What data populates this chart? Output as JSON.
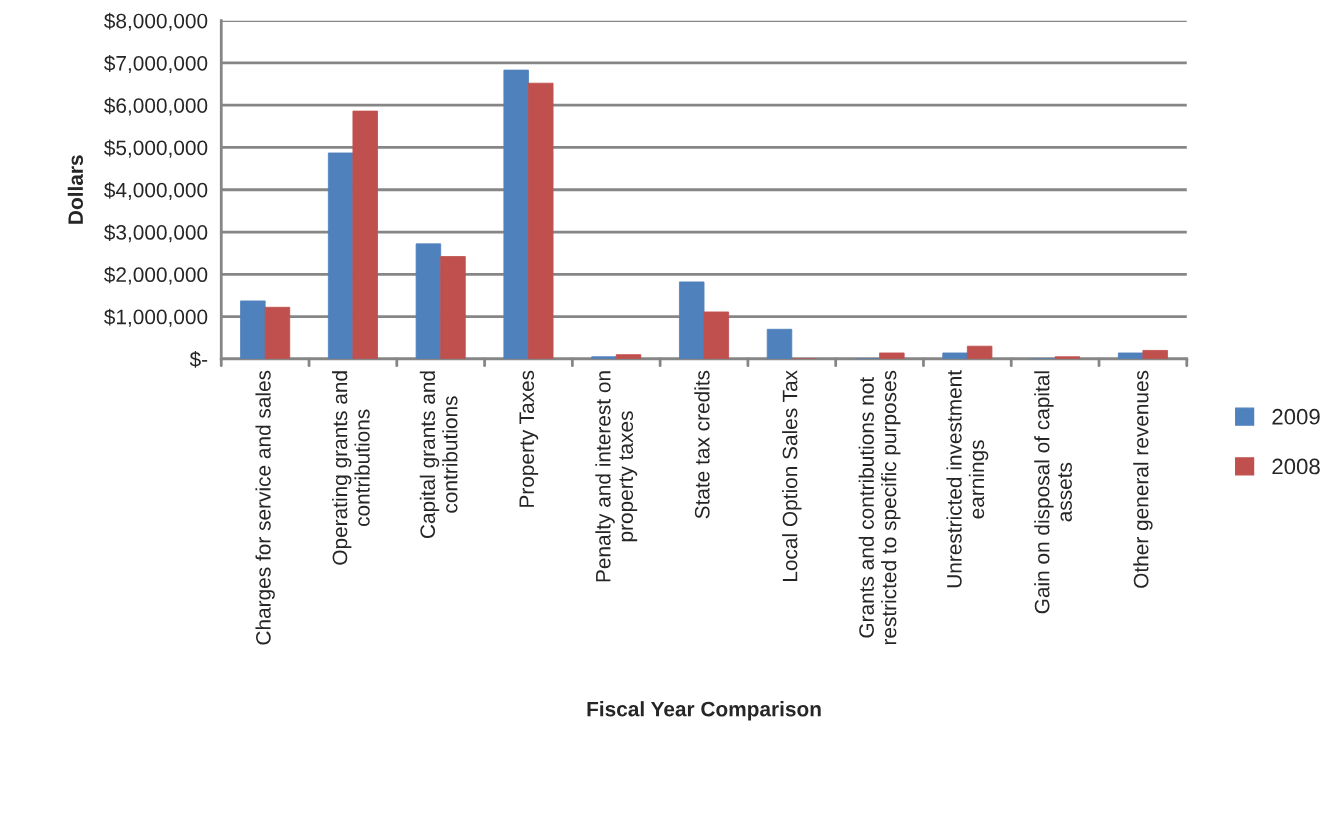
{
  "chart_data": {
    "type": "bar",
    "xlabel": "Fiscal Year Comparison",
    "ylabel": "Dollars",
    "categories": [
      "Charges for service and sales",
      "Operating grants and contributions",
      "Capital grants and contributions",
      "Property Taxes",
      "Penalty and interest on property taxes",
      "State tax credits",
      "Local Option Sales Tax",
      "Grants and contributions not restricted to specific purposes",
      "Unrestricted investment earnings",
      "Gain on disposal of capital assets",
      "Other general revenues"
    ],
    "series": [
      {
        "name": "2009",
        "color": "#4f81bd",
        "values": [
          1370000,
          4870000,
          2720000,
          6830000,
          50000,
          1820000,
          700000,
          0,
          140000,
          0,
          140000
        ]
      },
      {
        "name": "2008",
        "color": "#c0504d",
        "values": [
          1220000,
          5860000,
          2420000,
          6520000,
          100000,
          1110000,
          0,
          140000,
          300000,
          50000,
          200000
        ]
      }
    ],
    "ylim": [
      0,
      8000000
    ],
    "yticks": [
      {
        "value": 0,
        "label": "$-"
      },
      {
        "value": 1000000,
        "label": "$1,000,000"
      },
      {
        "value": 2000000,
        "label": "$2,000,000"
      },
      {
        "value": 3000000,
        "label": "$3,000,000"
      },
      {
        "value": 4000000,
        "label": "$4,000,000"
      },
      {
        "value": 5000000,
        "label": "$5,000,000"
      },
      {
        "value": 6000000,
        "label": "$6,000,000"
      },
      {
        "value": 7000000,
        "label": "$7,000,000"
      },
      {
        "value": 8000000,
        "label": "$8,000,000"
      }
    ],
    "grid": "y",
    "legend": "right"
  }
}
